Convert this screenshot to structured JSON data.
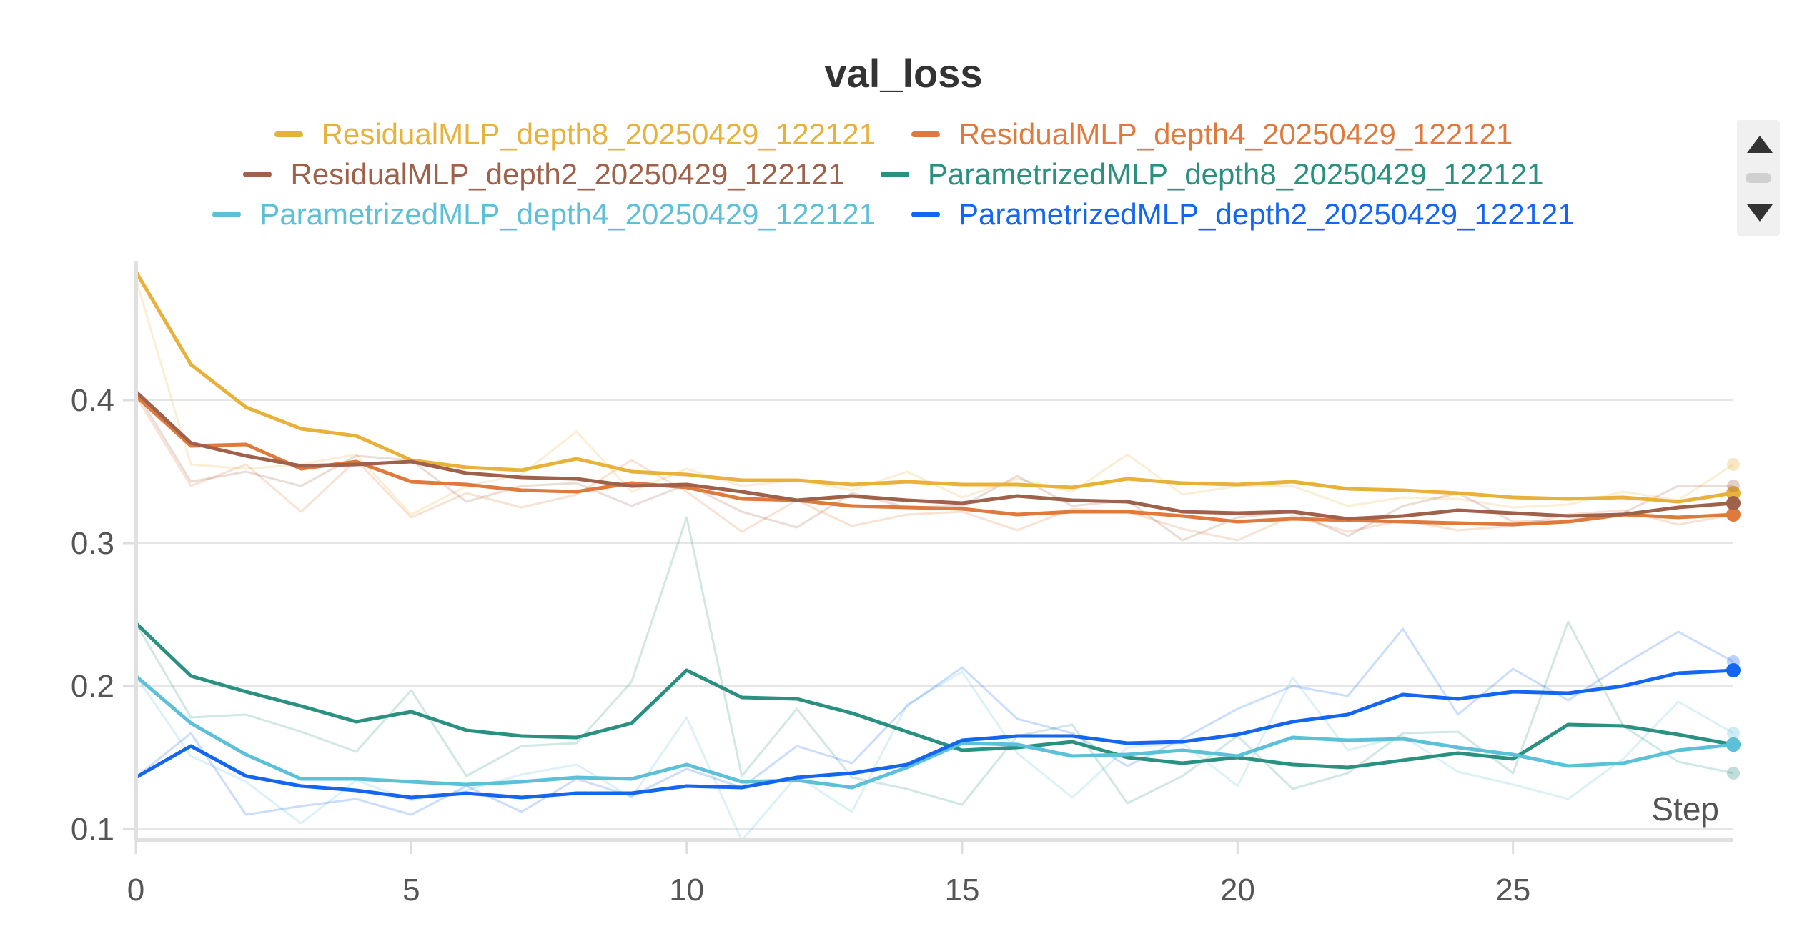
{
  "chart_data": {
    "type": "line",
    "title": "val_loss",
    "xlabel": "Step",
    "ylabel": "",
    "xlim": [
      0,
      29
    ],
    "ylim": [
      0.095,
      0.495
    ],
    "x_ticks": [
      0,
      5,
      10,
      15,
      20,
      25
    ],
    "x_tick_labels": [
      "0",
      "5",
      "10",
      "15",
      "20",
      "25"
    ],
    "y_ticks": [
      0.1,
      0.2,
      0.3,
      0.4
    ],
    "y_tick_labels": [
      "0.1",
      "0.2",
      "0.3",
      "0.4"
    ],
    "grid": "horizontal",
    "legend_position": "top-center",
    "x": [
      0,
      1,
      2,
      3,
      4,
      5,
      6,
      7,
      8,
      9,
      10,
      11,
      12,
      13,
      14,
      15,
      16,
      17,
      18,
      19,
      20,
      21,
      22,
      23,
      24,
      25,
      26,
      27,
      28,
      29
    ],
    "series": [
      {
        "name": "ResidualMLP_depth8_20250429_122121",
        "color": "#e8b13a",
        "values": [
          0.49,
          0.425,
          0.395,
          0.38,
          0.375,
          0.358,
          0.353,
          0.351,
          0.359,
          0.35,
          0.348,
          0.344,
          0.344,
          0.341,
          0.343,
          0.341,
          0.341,
          0.339,
          0.345,
          0.342,
          0.341,
          0.343,
          0.338,
          0.337,
          0.335,
          0.332,
          0.331,
          0.332,
          0.329,
          0.335
        ],
        "raw": [
          0.485,
          0.355,
          0.352,
          0.355,
          0.362,
          0.32,
          0.34,
          0.348,
          0.378,
          0.336,
          0.352,
          0.34,
          0.344,
          0.337,
          0.35,
          0.332,
          0.345,
          0.336,
          0.362,
          0.334,
          0.34,
          0.34,
          0.326,
          0.332,
          0.331,
          0.325,
          0.327,
          0.336,
          0.33,
          0.355
        ]
      },
      {
        "name": "ResidualMLP_depth4_20250429_122121",
        "color": "#e07a3c",
        "values": [
          0.403,
          0.368,
          0.369,
          0.352,
          0.357,
          0.343,
          0.341,
          0.337,
          0.336,
          0.342,
          0.339,
          0.331,
          0.33,
          0.326,
          0.325,
          0.324,
          0.32,
          0.322,
          0.322,
          0.319,
          0.315,
          0.317,
          0.316,
          0.315,
          0.314,
          0.313,
          0.315,
          0.32,
          0.318,
          0.32
        ],
        "raw": [
          0.403,
          0.34,
          0.355,
          0.322,
          0.358,
          0.318,
          0.335,
          0.325,
          0.334,
          0.358,
          0.336,
          0.308,
          0.33,
          0.312,
          0.32,
          0.322,
          0.309,
          0.324,
          0.322,
          0.31,
          0.302,
          0.319,
          0.308,
          0.316,
          0.309,
          0.312,
          0.32,
          0.323,
          0.313,
          0.32
        ]
      },
      {
        "name": "ResidualMLP_depth2_20250429_122121",
        "color": "#a0614a",
        "values": [
          0.406,
          0.37,
          0.361,
          0.354,
          0.355,
          0.357,
          0.349,
          0.346,
          0.345,
          0.34,
          0.341,
          0.336,
          0.33,
          0.333,
          0.33,
          0.328,
          0.333,
          0.33,
          0.329,
          0.322,
          0.321,
          0.322,
          0.317,
          0.319,
          0.323,
          0.321,
          0.319,
          0.32,
          0.325,
          0.328
        ],
        "raw": [
          0.406,
          0.343,
          0.35,
          0.34,
          0.361,
          0.358,
          0.329,
          0.34,
          0.342,
          0.326,
          0.341,
          0.322,
          0.311,
          0.335,
          0.325,
          0.326,
          0.347,
          0.326,
          0.33,
          0.302,
          0.318,
          0.322,
          0.305,
          0.326,
          0.335,
          0.315,
          0.316,
          0.321,
          0.34,
          0.34
        ]
      },
      {
        "name": "ParametrizedMLP_depth8_20250429_122121",
        "color": "#2a9080",
        "values": [
          0.244,
          0.207,
          0.196,
          0.186,
          0.175,
          0.182,
          0.169,
          0.165,
          0.164,
          0.174,
          0.211,
          0.192,
          0.191,
          0.181,
          0.168,
          0.155,
          0.157,
          0.161,
          0.15,
          0.146,
          0.15,
          0.145,
          0.143,
          0.148,
          0.153,
          0.149,
          0.173,
          0.172,
          0.166,
          0.159
        ],
        "raw": [
          0.244,
          0.178,
          0.18,
          0.168,
          0.154,
          0.197,
          0.137,
          0.158,
          0.16,
          0.203,
          0.318,
          0.137,
          0.184,
          0.136,
          0.128,
          0.117,
          0.165,
          0.173,
          0.118,
          0.137,
          0.165,
          0.128,
          0.139,
          0.167,
          0.168,
          0.139,
          0.245,
          0.172,
          0.147,
          0.139
        ]
      },
      {
        "name": "ParametrizedMLP_depth4_20250429_122121",
        "color": "#5bc0d8",
        "values": [
          0.207,
          0.174,
          0.152,
          0.135,
          0.135,
          0.133,
          0.131,
          0.133,
          0.136,
          0.135,
          0.145,
          0.133,
          0.134,
          0.129,
          0.143,
          0.16,
          0.159,
          0.151,
          0.152,
          0.155,
          0.151,
          0.164,
          0.162,
          0.163,
          0.157,
          0.152,
          0.144,
          0.146,
          0.155,
          0.159
        ],
        "raw": [
          0.207,
          0.151,
          0.133,
          0.104,
          0.134,
          0.12,
          0.127,
          0.138,
          0.145,
          0.122,
          0.178,
          0.092,
          0.137,
          0.112,
          0.187,
          0.21,
          0.153,
          0.122,
          0.157,
          0.16,
          0.13,
          0.206,
          0.155,
          0.165,
          0.14,
          0.131,
          0.121,
          0.149,
          0.189,
          0.167
        ]
      },
      {
        "name": "ParametrizedMLP_depth2_20250429_122121",
        "color": "#1466f0",
        "values": [
          0.136,
          0.158,
          0.137,
          0.13,
          0.127,
          0.122,
          0.125,
          0.122,
          0.125,
          0.125,
          0.13,
          0.129,
          0.136,
          0.139,
          0.145,
          0.162,
          0.165,
          0.165,
          0.16,
          0.161,
          0.166,
          0.175,
          0.18,
          0.194,
          0.191,
          0.196,
          0.195,
          0.2,
          0.209,
          0.211
        ],
        "raw": [
          0.136,
          0.167,
          0.11,
          0.116,
          0.121,
          0.11,
          0.13,
          0.112,
          0.135,
          0.123,
          0.142,
          0.129,
          0.158,
          0.146,
          0.186,
          0.213,
          0.177,
          0.167,
          0.144,
          0.163,
          0.184,
          0.2,
          0.193,
          0.24,
          0.18,
          0.212,
          0.19,
          0.215,
          0.238,
          0.217
        ]
      }
    ]
  },
  "scroller": {
    "up_icon": "triangle-up-icon",
    "down_icon": "triangle-down-icon"
  }
}
